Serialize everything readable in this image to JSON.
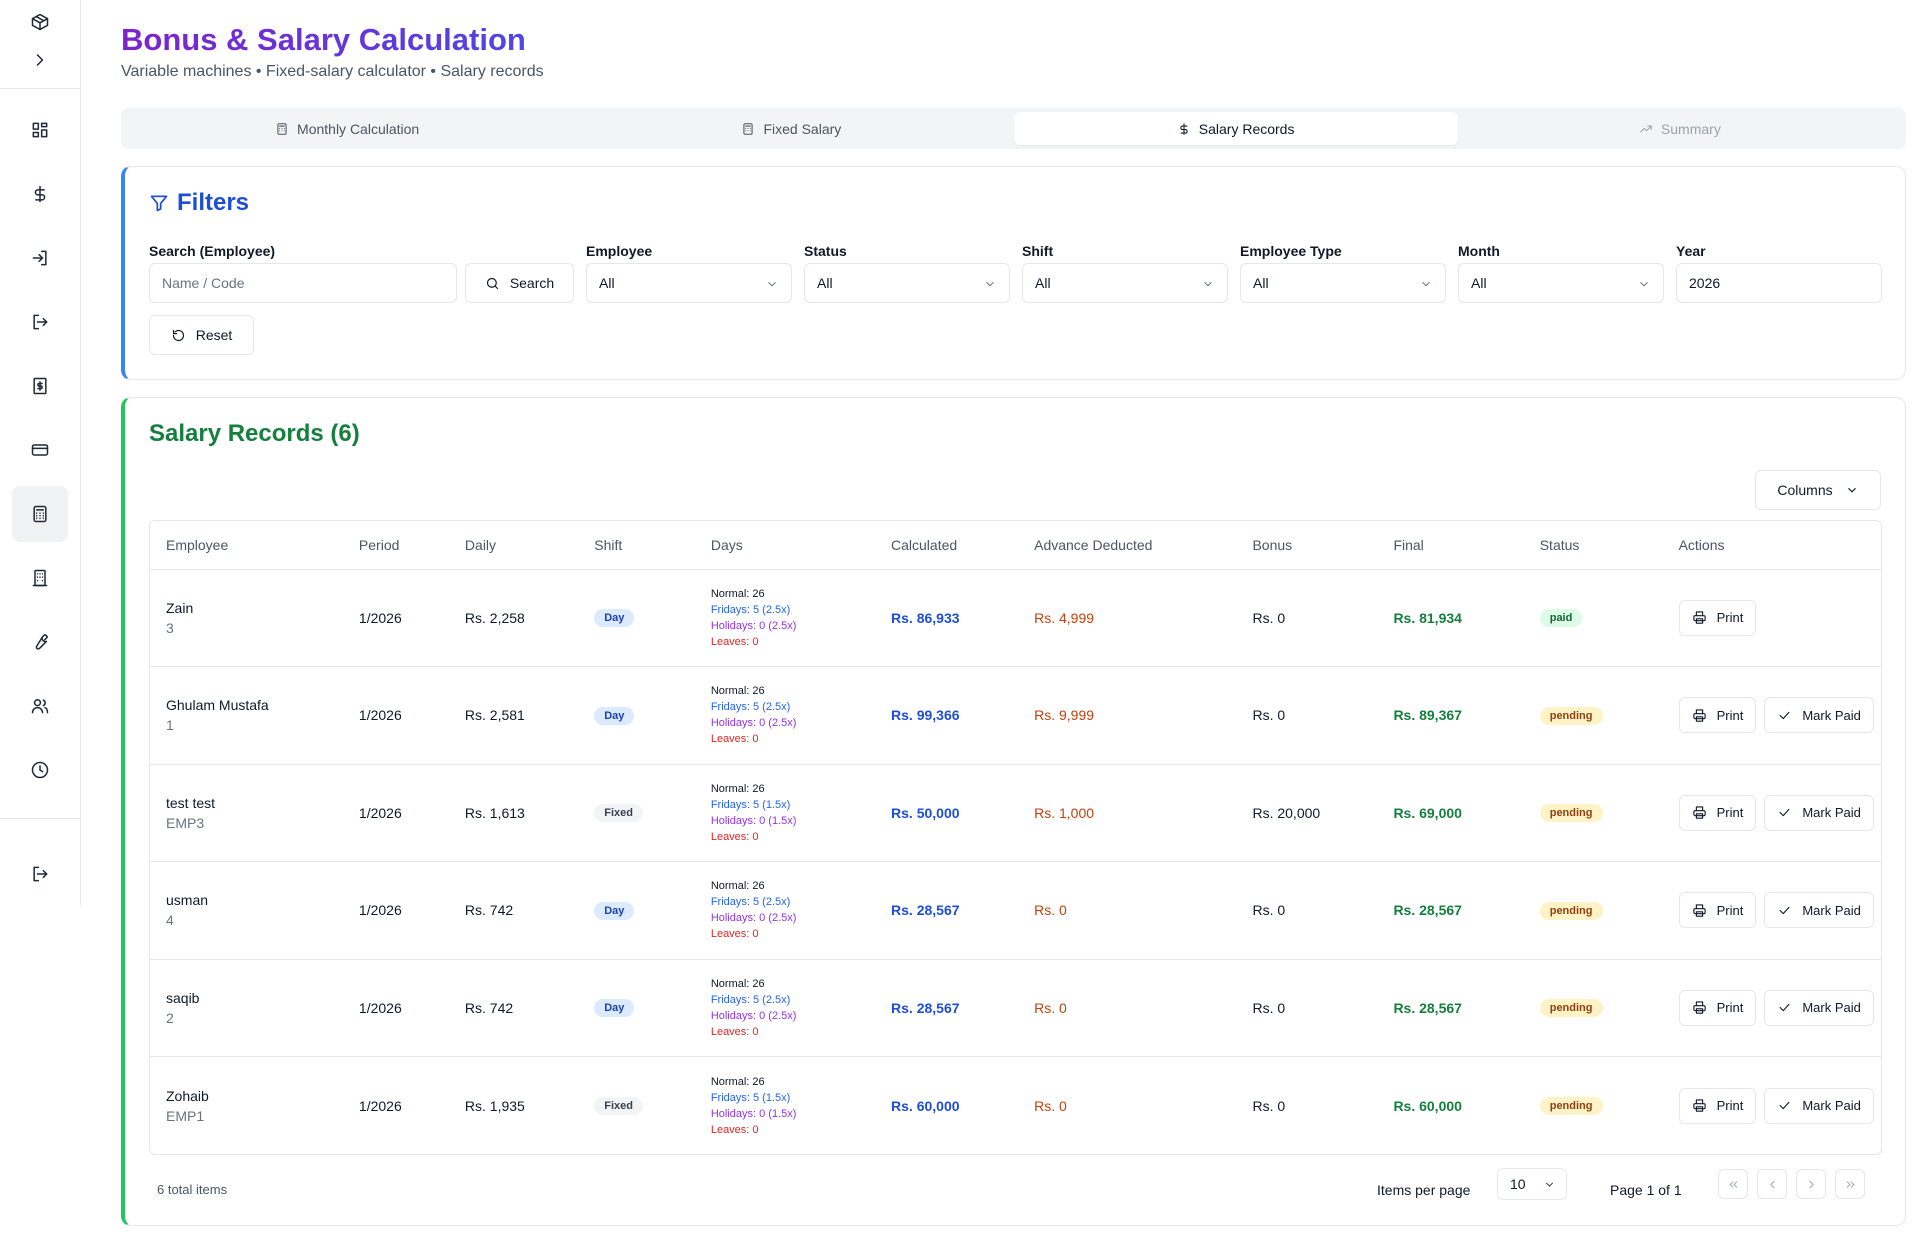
{
  "header": {
    "title": "Bonus & Salary Calculation",
    "subtitle": "Variable machines • Fixed-salary calculator • Salary records"
  },
  "tabs": [
    {
      "label": "Monthly Calculation",
      "icon": "calculator-icon",
      "state": "normal"
    },
    {
      "label": "Fixed Salary",
      "icon": "calculator-icon",
      "state": "normal"
    },
    {
      "label": "Salary Records",
      "icon": "dollar-icon",
      "state": "active"
    },
    {
      "label": "Summary",
      "icon": "trending-up-icon",
      "state": "disabled"
    }
  ],
  "filters": {
    "title": "Filters",
    "search_label": "Search (Employee)",
    "search_placeholder": "Name / Code",
    "search_button": "Search",
    "employee_label": "Employee",
    "employee_value": "All",
    "status_label": "Status",
    "status_value": "All",
    "shift_label": "Shift",
    "shift_value": "All",
    "type_label": "Employee Type",
    "type_value": "All",
    "month_label": "Month",
    "month_value": "All",
    "year_label": "Year",
    "year_value": "2026",
    "reset_button": "Reset"
  },
  "records": {
    "title": "Salary Records (6)",
    "columns_button": "Columns",
    "headers": [
      "Employee",
      "Period",
      "Daily",
      "Shift",
      "Days",
      "Calculated",
      "Advance Deducted",
      "Bonus",
      "Final",
      "Status",
      "Actions"
    ],
    "rows": [
      {
        "name": "Zain",
        "code": "3",
        "period": "1/2026",
        "daily": "Rs. 2,258",
        "shift": "Day",
        "normal": "Normal: 26",
        "fridays": "Fridays: 5 (2.5x)",
        "holidays": "Holidays: 0 (2.5x)",
        "leaves": "Leaves: 0",
        "calculated": "Rs. 86,933",
        "advance": "Rs. 4,999",
        "bonus": "Rs. 0",
        "final": "Rs. 81,934",
        "status": "paid",
        "print": "Print",
        "mark_paid": ""
      },
      {
        "name": "Ghulam Mustafa",
        "code": "1",
        "period": "1/2026",
        "daily": "Rs. 2,581",
        "shift": "Day",
        "normal": "Normal: 26",
        "fridays": "Fridays: 5 (2.5x)",
        "holidays": "Holidays: 0 (2.5x)",
        "leaves": "Leaves: 0",
        "calculated": "Rs. 99,366",
        "advance": "Rs. 9,999",
        "bonus": "Rs. 0",
        "final": "Rs. 89,367",
        "status": "pending",
        "print": "Print",
        "mark_paid": "Mark Paid"
      },
      {
        "name": "test test",
        "code": "EMP3",
        "period": "1/2026",
        "daily": "Rs. 1,613",
        "shift": "Fixed",
        "normal": "Normal: 26",
        "fridays": "Fridays: 5 (1.5x)",
        "holidays": "Holidays: 0 (1.5x)",
        "leaves": "Leaves: 0",
        "calculated": "Rs. 50,000",
        "advance": "Rs. 1,000",
        "bonus": "Rs. 20,000",
        "final": "Rs. 69,000",
        "status": "pending",
        "print": "Print",
        "mark_paid": "Mark Paid"
      },
      {
        "name": "usman",
        "code": "4",
        "period": "1/2026",
        "daily": "Rs. 742",
        "shift": "Day",
        "normal": "Normal: 26",
        "fridays": "Fridays: 5 (2.5x)",
        "holidays": "Holidays: 0 (2.5x)",
        "leaves": "Leaves: 0",
        "calculated": "Rs. 28,567",
        "advance": "Rs. 0",
        "bonus": "Rs. 0",
        "final": "Rs. 28,567",
        "status": "pending",
        "print": "Print",
        "mark_paid": "Mark Paid"
      },
      {
        "name": "saqib",
        "code": "2",
        "period": "1/2026",
        "daily": "Rs. 742",
        "shift": "Day",
        "normal": "Normal: 26",
        "fridays": "Fridays: 5 (2.5x)",
        "holidays": "Holidays: 0 (2.5x)",
        "leaves": "Leaves: 0",
        "calculated": "Rs. 28,567",
        "advance": "Rs. 0",
        "bonus": "Rs. 0",
        "final": "Rs. 28,567",
        "status": "pending",
        "print": "Print",
        "mark_paid": "Mark Paid"
      },
      {
        "name": "Zohaib",
        "code": "EMP1",
        "period": "1/2026",
        "daily": "Rs. 1,935",
        "shift": "Fixed",
        "normal": "Normal: 26",
        "fridays": "Fridays: 5 (1.5x)",
        "holidays": "Holidays: 0 (1.5x)",
        "leaves": "Leaves: 0",
        "calculated": "Rs. 60,000",
        "advance": "Rs. 0",
        "bonus": "Rs. 0",
        "final": "Rs. 60,000",
        "status": "pending",
        "print": "Print",
        "mark_paid": "Mark Paid"
      }
    ],
    "total_items": "6 total items",
    "items_per_page_label": "Items per page",
    "items_per_page_value": "10",
    "page_info": "Page 1 of 1"
  },
  "sidebar": {
    "icons": [
      "box-icon",
      "chevron-right-icon",
      "dashboard-icon",
      "dollar-icon",
      "login-icon",
      "logout-arrow-icon",
      "receipt-icon",
      "credit-card-icon",
      "calculator-icon",
      "building-icon",
      "wrench-icon",
      "users-icon",
      "clock-icon",
      "logout-icon"
    ]
  }
}
